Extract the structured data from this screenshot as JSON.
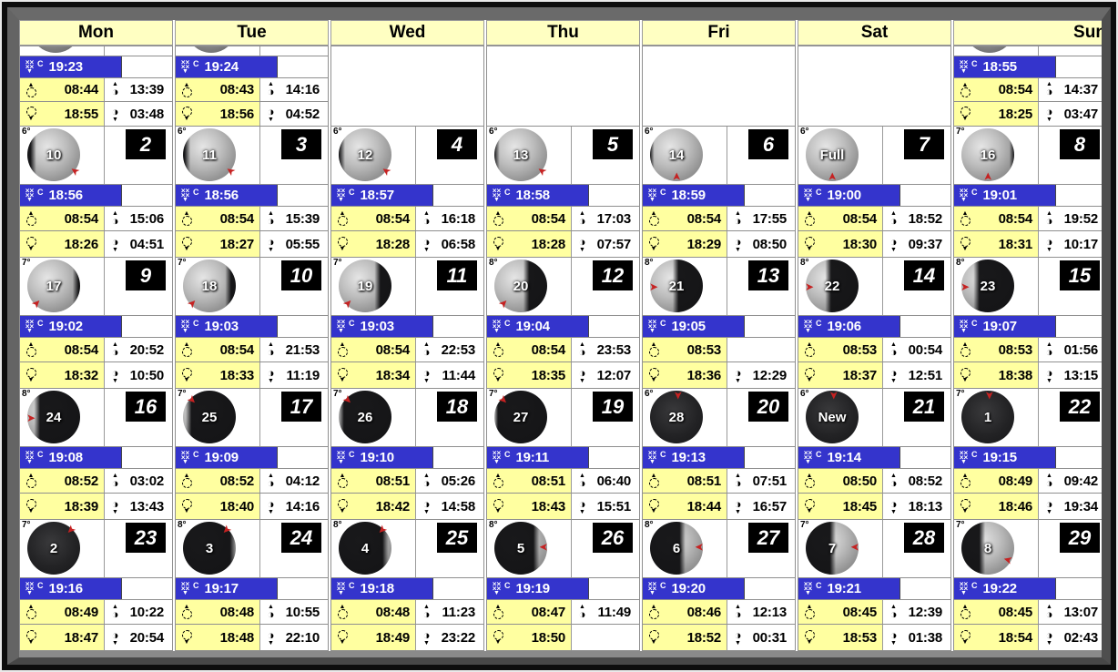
{
  "header": {
    "days": [
      "Mon",
      "Tue",
      "Wed",
      "Thu",
      "Fri",
      "Sat",
      "Sun"
    ]
  },
  "icons": {
    "dusk": "stars-cluster-C-down-arrow",
    "sunrise": "dashed-sun-circle-up-arrow",
    "sunset": "dashed-sun-circle-down-arrow",
    "moonrise": "half-moon-up-arrow",
    "moonset": "half-moon-down-arrow",
    "moon_marker": "red-arrow"
  },
  "colors": {
    "header_bg": "#ffffc2",
    "cell_yellow": "#ffffa0",
    "dusk_blue": "#3434cc",
    "day_box_bg": "#000000",
    "grid_line": "#8f8f8f",
    "frame_gray": "#5c5c5c",
    "arrow_red": "#c62222"
  },
  "weeks": [
    [
      {
        "type": "partial",
        "sliver": true,
        "dusk": "19:23",
        "sunrise": "08:44",
        "moonrise": "13:39",
        "sunset": "18:55",
        "moonset": "03:48"
      },
      {
        "type": "partial",
        "sliver": true,
        "dusk": "19:24",
        "sunrise": "08:43",
        "moonrise": "14:16",
        "sunset": "18:56",
        "moonset": "04:52"
      },
      {
        "type": "empty"
      },
      {
        "type": "empty"
      },
      {
        "type": "empty"
      },
      {
        "type": "empty"
      },
      {
        "type": "partial",
        "sliver": true,
        "dusk": "18:55",
        "sunrise": "08:54",
        "moonrise": "14:37",
        "sunset": "18:25",
        "moonset": "03:47"
      }
    ],
    [
      {
        "type": "day",
        "deg": "6°",
        "day": "2",
        "moon": {
          "label": "10",
          "lit": 90,
          "dark": "left",
          "arrow": "br"
        },
        "dusk": "18:56",
        "sunrise": "08:54",
        "sunset": "18:26",
        "moonrise": "15:06",
        "moonset": "04:51"
      },
      {
        "type": "day",
        "deg": "6°",
        "day": "3",
        "moon": {
          "label": "11",
          "lit": 93,
          "dark": "left",
          "arrow": "br"
        },
        "dusk": "18:56",
        "sunrise": "08:54",
        "sunset": "18:27",
        "moonrise": "15:39",
        "moonset": "05:55"
      },
      {
        "type": "day",
        "deg": "6°",
        "day": "4",
        "moon": {
          "label": "12",
          "lit": 95,
          "dark": "left",
          "arrow": "br"
        },
        "dusk": "18:57",
        "sunrise": "08:54",
        "sunset": "18:28",
        "moonrise": "16:18",
        "moonset": "06:58"
      },
      {
        "type": "day",
        "deg": "6°",
        "day": "5",
        "moon": {
          "label": "13",
          "lit": 97,
          "dark": "left",
          "arrow": "br"
        },
        "dusk": "18:58",
        "sunrise": "08:54",
        "sunset": "18:28",
        "moonrise": "17:03",
        "moonset": "07:57"
      },
      {
        "type": "day",
        "deg": "6°",
        "day": "6",
        "moon": {
          "label": "14",
          "lit": 99,
          "dark": "left",
          "arrow": "b"
        },
        "dusk": "18:59",
        "sunrise": "08:54",
        "sunset": "18:29",
        "moonrise": "17:55",
        "moonset": "08:50"
      },
      {
        "type": "day",
        "deg": "6°",
        "day": "7",
        "moon": {
          "label": "Full",
          "lit": 100,
          "dark": "none",
          "arrow": "b"
        },
        "dusk": "19:00",
        "sunrise": "08:54",
        "sunset": "18:30",
        "moonrise": "18:52",
        "moonset": "09:37"
      },
      {
        "type": "day",
        "deg": "7°",
        "day": "8",
        "moon": {
          "label": "16",
          "lit": 98,
          "dark": "right",
          "arrow": "b"
        },
        "dusk": "19:01",
        "sunrise": "08:54",
        "sunset": "18:31",
        "moonrise": "19:52",
        "moonset": "10:17"
      }
    ],
    [
      {
        "type": "day",
        "deg": "7°",
        "day": "9",
        "moon": {
          "label": "17",
          "lit": 93,
          "dark": "right",
          "arrow": "bl"
        },
        "dusk": "19:02",
        "sunrise": "08:54",
        "sunset": "18:32",
        "moonrise": "20:52",
        "moonset": "10:50"
      },
      {
        "type": "day",
        "deg": "7°",
        "day": "10",
        "moon": {
          "label": "18",
          "lit": 87,
          "dark": "right",
          "arrow": "bl"
        },
        "dusk": "19:03",
        "sunrise": "08:54",
        "sunset": "18:33",
        "moonrise": "21:53",
        "moonset": "11:19"
      },
      {
        "type": "day",
        "deg": "7°",
        "day": "11",
        "moon": {
          "label": "19",
          "lit": 75,
          "dark": "right",
          "arrow": "bl"
        },
        "dusk": "19:03",
        "sunrise": "08:54",
        "sunset": "18:34",
        "moonrise": "22:53",
        "moonset": "11:44"
      },
      {
        "type": "day",
        "deg": "8°",
        "day": "12",
        "moon": {
          "label": "20",
          "lit": 62,
          "dark": "right",
          "arrow": "bl"
        },
        "dusk": "19:04",
        "sunrise": "08:54",
        "sunset": "18:35",
        "moonrise": "23:53",
        "moonset": "12:07"
      },
      {
        "type": "day",
        "deg": "8°",
        "day": "13",
        "moon": {
          "label": "21",
          "lit": 50,
          "dark": "right",
          "arrow": "l"
        },
        "dusk": "19:05",
        "sunrise": "08:53",
        "sunset": "18:36",
        "moonrise": "",
        "moonset": "12:29"
      },
      {
        "type": "day",
        "deg": "8°",
        "day": "14",
        "moon": {
          "label": "22",
          "lit": 44,
          "dark": "right",
          "arrow": "l"
        },
        "dusk": "19:06",
        "sunrise": "08:53",
        "sunset": "18:37",
        "moonrise": "00:54",
        "moonset": "12:51"
      },
      {
        "type": "day",
        "deg": "8°",
        "day": "15",
        "moon": {
          "label": "23",
          "lit": 30,
          "dark": "right",
          "arrow": "l"
        },
        "dusk": "19:07",
        "sunrise": "08:53",
        "sunset": "18:38",
        "moonrise": "01:56",
        "moonset": "13:15"
      }
    ],
    [
      {
        "type": "day",
        "deg": "8°",
        "day": "16",
        "moon": {
          "label": "24",
          "lit": 20,
          "dark": "right",
          "arrow": "l"
        },
        "dusk": "19:08",
        "sunrise": "08:52",
        "sunset": "18:39",
        "moonrise": "03:02",
        "moonset": "13:43"
      },
      {
        "type": "day",
        "deg": "7°",
        "day": "17",
        "moon": {
          "label": "25",
          "lit": 12,
          "dark": "right",
          "arrow": "tl"
        },
        "dusk": "19:09",
        "sunrise": "08:52",
        "sunset": "18:40",
        "moonrise": "04:12",
        "moonset": "14:16"
      },
      {
        "type": "day",
        "deg": "7°",
        "day": "18",
        "moon": {
          "label": "26",
          "lit": 6,
          "dark": "right",
          "arrow": "tl"
        },
        "dusk": "19:10",
        "sunrise": "08:51",
        "sunset": "18:42",
        "moonrise": "05:26",
        "moonset": "14:58"
      },
      {
        "type": "day",
        "deg": "7°",
        "day": "19",
        "moon": {
          "label": "27",
          "lit": 3,
          "dark": "right",
          "arrow": "tl"
        },
        "dusk": "19:11",
        "sunrise": "08:51",
        "sunset": "18:43",
        "moonrise": "06:40",
        "moonset": "15:51"
      },
      {
        "type": "day",
        "deg": "6°",
        "day": "20",
        "moon": {
          "label": "28",
          "lit": 1,
          "dark": "right",
          "arrow": "t"
        },
        "dusk": "19:13",
        "sunrise": "08:51",
        "sunset": "18:44",
        "moonrise": "07:51",
        "moonset": "16:57"
      },
      {
        "type": "day",
        "deg": "6°",
        "day": "21",
        "moon": {
          "label": "New",
          "lit": 0,
          "dark": "none",
          "arrow": "t"
        },
        "dusk": "19:14",
        "sunrise": "08:50",
        "sunset": "18:45",
        "moonrise": "08:52",
        "moonset": "18:13"
      },
      {
        "type": "day",
        "deg": "7°",
        "day": "22",
        "moon": {
          "label": "1",
          "lit": 1,
          "dark": "left",
          "arrow": "t"
        },
        "dusk": "19:15",
        "sunrise": "08:49",
        "sunset": "18:46",
        "moonrise": "09:42",
        "moonset": "19:34"
      }
    ],
    [
      {
        "type": "day",
        "deg": "7°",
        "day": "23",
        "moon": {
          "label": "2",
          "lit": 2,
          "dark": "left",
          "arrow": "tr"
        },
        "dusk": "19:16",
        "sunrise": "08:49",
        "sunset": "18:47",
        "moonrise": "10:22",
        "moonset": "20:54"
      },
      {
        "type": "day",
        "deg": "8°",
        "day": "24",
        "moon": {
          "label": "3",
          "lit": 7,
          "dark": "left",
          "arrow": "tr"
        },
        "dusk": "19:17",
        "sunrise": "08:48",
        "sunset": "18:48",
        "moonrise": "10:55",
        "moonset": "22:10"
      },
      {
        "type": "day",
        "deg": "8°",
        "day": "25",
        "moon": {
          "label": "4",
          "lit": 13,
          "dark": "left",
          "arrow": "tr"
        },
        "dusk": "19:18",
        "sunrise": "08:48",
        "sunset": "18:49",
        "moonrise": "11:23",
        "moonset": "23:22"
      },
      {
        "type": "day",
        "deg": "8°",
        "day": "26",
        "moon": {
          "label": "5",
          "lit": 22,
          "dark": "left",
          "arrow": "r"
        },
        "dusk": "19:19",
        "sunrise": "08:47",
        "sunset": "18:50",
        "moonrise": "11:49",
        "moonset": ""
      },
      {
        "type": "day",
        "deg": "8°",
        "day": "27",
        "moon": {
          "label": "6",
          "lit": 40,
          "dark": "left",
          "arrow": "r"
        },
        "dusk": "19:20",
        "sunrise": "08:46",
        "sunset": "18:52",
        "moonrise": "12:13",
        "moonset": "00:31"
      },
      {
        "type": "day",
        "deg": "7°",
        "day": "28",
        "moon": {
          "label": "7",
          "lit": 50,
          "dark": "left",
          "arrow": "r"
        },
        "dusk": "19:21",
        "sunrise": "08:45",
        "sunset": "18:53",
        "moonrise": "12:39",
        "moonset": "01:38"
      },
      {
        "type": "day",
        "deg": "7°",
        "day": "29",
        "moon": {
          "label": "8",
          "lit": 62,
          "dark": "left",
          "arrow": "rb"
        },
        "dusk": "19:22",
        "sunrise": "08:45",
        "sunset": "18:54",
        "moonrise": "13:07",
        "moonset": "02:43"
      }
    ]
  ]
}
